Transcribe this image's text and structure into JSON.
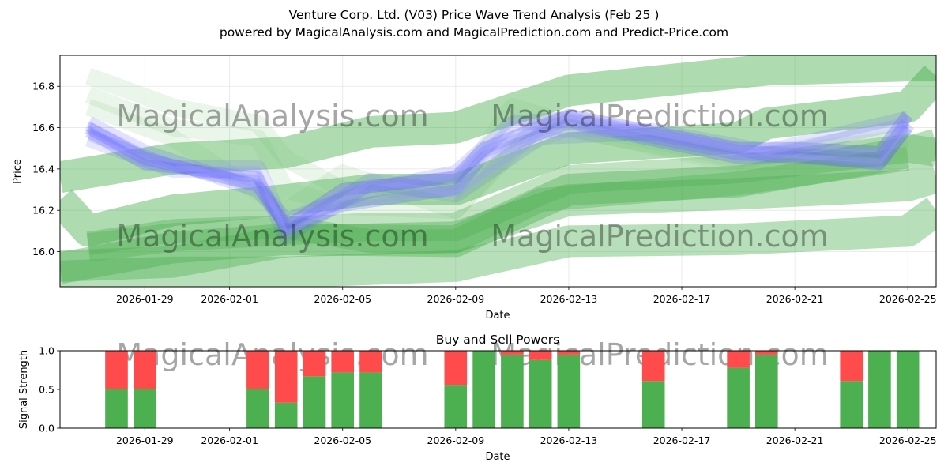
{
  "figure": {
    "title": "Venture Corp. Ltd. (V03) Price Wave Trend Analysis (Feb 25 )",
    "subtitle": "powered by MagicalAnalysis.com and MagicalPrediction.com and Predict-Price.com",
    "watermarks": [
      "MagicalAnalysis.com",
      "MagicalPrediction.com"
    ]
  },
  "chart_data": [
    {
      "type": "line",
      "title": "",
      "xlabel": "Date",
      "ylabel": "Price",
      "xlim": [
        "2026-01-26",
        "2026-02-26"
      ],
      "ylim": [
        15.83,
        16.95
      ],
      "yticks": [
        16.0,
        16.2,
        16.4,
        16.6,
        16.8
      ],
      "ytick_labels": [
        "16.0",
        "16.2",
        "16.4",
        "16.6",
        "16.8"
      ],
      "xticks": [
        "2026-01-29",
        "2026-02-01",
        "2026-02-05",
        "2026-02-09",
        "2026-02-13",
        "2026-02-17",
        "2026-02-21",
        "2026-02-25"
      ],
      "grid": true,
      "colors": {
        "history": "#5a5aff",
        "prediction": "#4caf50",
        "history_light": "#9a9aff"
      },
      "series": [
        {
          "name": "price-wave-1",
          "kind": "history",
          "width": 16,
          "opacity": 0.3,
          "x": [
            "2026-01-27",
            "2026-01-29",
            "2026-02-02",
            "2026-02-03",
            "2026-02-05",
            "2026-02-09",
            "2026-02-10",
            "2026-02-13",
            "2026-02-19",
            "2026-02-21",
            "2026-02-24",
            "2026-02-25"
          ],
          "y": [
            16.6,
            16.45,
            16.32,
            16.12,
            16.3,
            16.36,
            16.5,
            16.66,
            16.5,
            16.5,
            16.48,
            16.66
          ]
        },
        {
          "name": "price-wave-2",
          "kind": "history",
          "width": 14,
          "opacity": 0.25,
          "x": [
            "2026-01-27",
            "2026-01-29",
            "2026-02-02",
            "2026-02-03",
            "2026-02-05",
            "2026-02-09",
            "2026-02-10",
            "2026-02-13",
            "2026-02-19",
            "2026-02-21",
            "2026-02-24",
            "2026-02-25"
          ],
          "y": [
            16.58,
            16.42,
            16.36,
            16.1,
            16.22,
            16.3,
            16.46,
            16.62,
            16.45,
            16.46,
            16.42,
            16.6
          ]
        },
        {
          "name": "price-wave-3",
          "kind": "history",
          "width": 20,
          "opacity": 0.18,
          "x": [
            "2026-01-27",
            "2026-01-29",
            "2026-02-02",
            "2026-02-03",
            "2026-02-06",
            "2026-02-09",
            "2026-02-11",
            "2026-02-13",
            "2026-02-19",
            "2026-02-24",
            "2026-02-25"
          ],
          "y": [
            16.62,
            16.48,
            16.3,
            16.15,
            16.3,
            16.38,
            16.62,
            16.64,
            16.48,
            16.44,
            16.62
          ]
        },
        {
          "name": "price-wave-4",
          "kind": "history",
          "width": 22,
          "opacity": 0.15,
          "x": [
            "2026-01-27",
            "2026-01-30",
            "2026-02-02",
            "2026-02-03",
            "2026-02-06",
            "2026-02-09",
            "2026-02-12",
            "2026-02-16",
            "2026-02-20",
            "2026-02-25"
          ],
          "y": [
            16.55,
            16.4,
            16.4,
            16.08,
            16.34,
            16.28,
            16.56,
            16.58,
            16.48,
            16.64
          ]
        },
        {
          "name": "price-wave-5",
          "kind": "mixed",
          "width": 22,
          "opacity": 0.14,
          "x": [
            "2026-01-27",
            "2026-01-30",
            "2026-02-02",
            "2026-02-03",
            "2026-02-05",
            "2026-02-09",
            "2026-02-11",
            "2026-02-13",
            "2026-02-19",
            "2026-02-25"
          ],
          "y": [
            16.85,
            16.7,
            16.62,
            16.45,
            16.3,
            16.3,
            16.7,
            16.62,
            16.45,
            16.55
          ]
        },
        {
          "name": "price-wave-6",
          "kind": "mixed",
          "width": 22,
          "opacity": 0.14,
          "x": [
            "2026-01-27",
            "2026-01-30",
            "2026-02-02",
            "2026-02-03",
            "2026-02-05",
            "2026-02-09",
            "2026-02-11",
            "2026-02-13",
            "2026-02-19",
            "2026-02-25"
          ],
          "y": [
            16.76,
            16.6,
            16.55,
            16.3,
            16.22,
            16.2,
            16.5,
            16.6,
            16.42,
            16.5
          ]
        },
        {
          "name": "price-wave-7",
          "kind": "mixed",
          "width": 22,
          "opacity": 0.14,
          "x": [
            "2026-01-27",
            "2026-01-30",
            "2026-02-03",
            "2026-02-05",
            "2026-02-09",
            "2026-02-12",
            "2026-02-19",
            "2026-02-25"
          ],
          "y": [
            16.7,
            16.55,
            16.2,
            16.38,
            16.2,
            16.62,
            16.44,
            16.6
          ]
        },
        {
          "name": "prediction-wave-1",
          "kind": "prediction",
          "width": 40,
          "opacity": 0.45,
          "x": [
            "2026-01-26",
            "2026-01-27",
            "2026-01-30",
            "2026-02-03",
            "2026-02-06",
            "2026-02-09",
            "2026-02-13",
            "2026-02-19",
            "2026-02-20",
            "2026-02-25",
            "2026-02-26"
          ],
          "y": [
            16.25,
            16.1,
            16.2,
            16.25,
            16.3,
            16.3,
            16.5,
            16.55,
            16.62,
            16.7,
            16.85
          ]
        },
        {
          "name": "prediction-wave-2",
          "kind": "prediction",
          "width": 40,
          "opacity": 0.45,
          "x": [
            "2026-01-26",
            "2026-01-30",
            "2026-02-03",
            "2026-02-06",
            "2026-02-09",
            "2026-02-13",
            "2026-02-20",
            "2026-02-25",
            "2026-02-26"
          ],
          "y": [
            16.36,
            16.45,
            16.48,
            16.58,
            16.6,
            16.78,
            16.88,
            16.9,
            16.9
          ]
        },
        {
          "name": "prediction-wave-3",
          "kind": "prediction",
          "width": 40,
          "opacity": 0.4,
          "x": [
            "2026-01-26",
            "2026-01-30",
            "2026-02-03",
            "2026-02-09",
            "2026-02-13",
            "2026-02-19",
            "2026-02-25",
            "2026-02-26"
          ],
          "y": [
            15.92,
            16.02,
            16.06,
            16.05,
            16.3,
            16.34,
            16.48,
            16.52
          ]
        },
        {
          "name": "prediction-wave-4",
          "kind": "prediction",
          "width": 40,
          "opacity": 0.4,
          "x": [
            "2026-01-26",
            "2026-01-30",
            "2026-02-03",
            "2026-02-09",
            "2026-02-13",
            "2026-02-19",
            "2026-02-25",
            "2026-02-26"
          ],
          "y": [
            15.93,
            15.95,
            16.05,
            16.07,
            16.25,
            16.28,
            16.32,
            16.36
          ]
        },
        {
          "name": "prediction-wave-5",
          "kind": "prediction",
          "width": 40,
          "opacity": 0.4,
          "x": [
            "2026-01-26",
            "2026-01-30",
            "2026-02-03",
            "2026-02-09",
            "2026-02-13",
            "2026-02-19",
            "2026-02-25",
            "2026-02-26"
          ],
          "y": [
            15.88,
            15.9,
            15.9,
            15.93,
            16.05,
            16.06,
            16.1,
            16.2
          ]
        },
        {
          "name": "prediction-wave-6",
          "kind": "prediction",
          "width": 36,
          "opacity": 0.35,
          "x": [
            "2026-01-27",
            "2026-01-30",
            "2026-02-03",
            "2026-02-06",
            "2026-02-09",
            "2026-02-13",
            "2026-02-19",
            "2026-02-25",
            "2026-02-26"
          ],
          "y": [
            16.02,
            16.07,
            16.1,
            16.12,
            16.12,
            16.35,
            16.4,
            16.5,
            16.48
          ]
        },
        {
          "name": "prediction-wave-7",
          "kind": "prediction",
          "width": 30,
          "opacity": 0.35,
          "x": [
            "2026-01-27",
            "2026-01-30",
            "2026-02-03",
            "2026-02-06",
            "2026-02-09",
            "2026-02-12",
            "2026-02-19",
            "2026-02-25"
          ],
          "y": [
            16.04,
            16.1,
            16.12,
            16.05,
            16.05,
            16.25,
            16.33,
            16.45
          ]
        }
      ]
    },
    {
      "type": "bar",
      "title": "Buy and Sell Powers",
      "xlabel": "Date",
      "ylabel": "Signal Strength",
      "xlim": [
        "2026-01-26",
        "2026-02-26"
      ],
      "ylim": [
        0,
        1.0
      ],
      "yticks": [
        0.0,
        0.5,
        1.0
      ],
      "ytick_labels": [
        "0.0",
        "0.5",
        "1.0"
      ],
      "xticks": [
        "2026-01-29",
        "2026-02-01",
        "2026-02-05",
        "2026-02-09",
        "2026-02-13",
        "2026-02-17",
        "2026-02-21",
        "2026-02-25"
      ],
      "colors": {
        "buy": "#4caf50",
        "sell": "#ff4b4b"
      },
      "dates": [
        "2026-01-28",
        "2026-01-29",
        "2026-02-02",
        "2026-02-03",
        "2026-02-04",
        "2026-02-05",
        "2026-02-06",
        "2026-02-09",
        "2026-02-10",
        "2026-02-11",
        "2026-02-12",
        "2026-02-13",
        "2026-02-16",
        "2026-02-19",
        "2026-02-20",
        "2026-02-23",
        "2026-02-24",
        "2026-02-25"
      ],
      "series": [
        {
          "name": "Buy",
          "values": [
            0.5,
            0.5,
            0.5,
            0.33,
            0.67,
            0.72,
            0.72,
            0.56,
            1.0,
            0.95,
            0.88,
            0.95,
            0.61,
            0.78,
            0.95,
            0.61,
            1.0,
            1.0
          ]
        },
        {
          "name": "Sell",
          "values": [
            0.5,
            0.5,
            0.5,
            0.67,
            0.33,
            0.28,
            0.28,
            0.44,
            0.0,
            0.05,
            0.12,
            0.05,
            0.39,
            0.22,
            0.05,
            0.39,
            0.0,
            0.0
          ]
        }
      ]
    }
  ]
}
